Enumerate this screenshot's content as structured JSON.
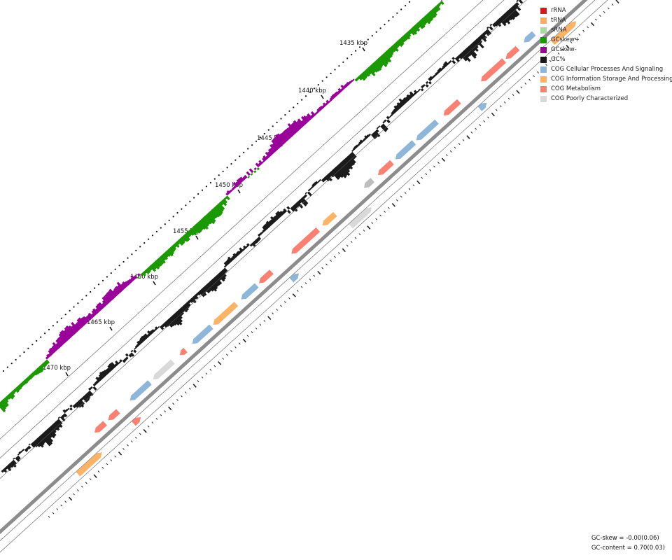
{
  "scale": {
    "tick_labels": [
      "1435 kbp",
      "1440 kbp",
      "1445 kbp",
      "1450 kbp",
      "1455 kbp",
      "1460 kbp",
      "1465 kbp",
      "1470 kbp"
    ]
  },
  "legend": [
    {
      "label": "rRNA",
      "color": "#d7191c"
    },
    {
      "label": "tRNA",
      "color": "#fdae61"
    },
    {
      "label": "sRNA",
      "color": "#a6dba0"
    },
    {
      "label": "GCskew+",
      "color": "#1a9800"
    },
    {
      "label": "GCskew-",
      "color": "#990099"
    },
    {
      "label": "GC%",
      "color": "#1a1a1a"
    },
    {
      "label": "COG Cellular Processes And Signaling",
      "color": "#8db6d9"
    },
    {
      "label": "COG Information Storage And Processing",
      "color": "#fdb366"
    },
    {
      "label": "COG Metabolism",
      "color": "#fa8072"
    },
    {
      "label": "COG Poorly Characterized",
      "color": "#d9d9d9"
    }
  ],
  "stats": {
    "gc_skew": "GC-skew = -0.00(0.06)",
    "gc_content": "GC-content = 0.70(0.03)"
  }
}
